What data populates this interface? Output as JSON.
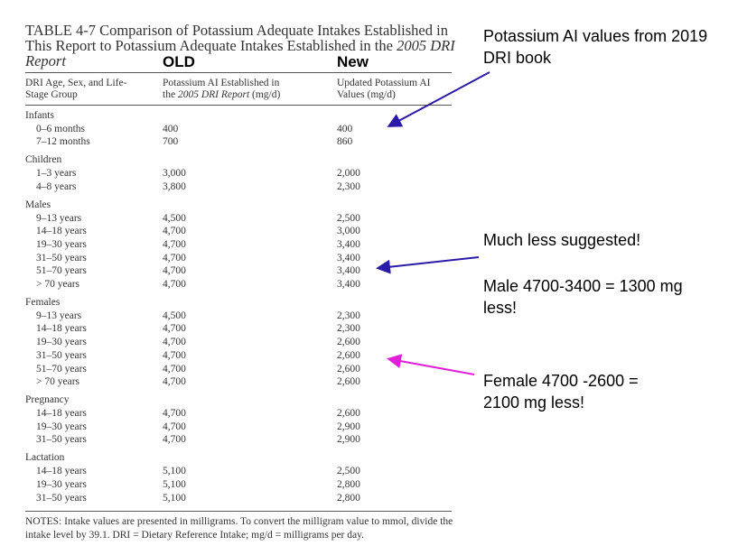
{
  "title": {
    "prefix": "TABLE 4-7 Comparison of Potassium Adequate Intakes Established in This Report to Potassium Adequate Intakes Established in the ",
    "italic": "2005 DRI Report"
  },
  "labels": {
    "old": "OLD",
    "new": "New"
  },
  "headers": {
    "col1": "DRI Age, Sex, and Life-Stage Group",
    "col2_a": "Potassium AI Established in",
    "col2_b": "the ",
    "col2_italic": "2005 DRI Report",
    "col2_c": " (mg/d)",
    "col3": "Updated Potassium AI Values (mg/d)"
  },
  "groups": [
    {
      "name": "Infants",
      "rows": [
        [
          "0–6 months",
          "400",
          "400"
        ],
        [
          "7–12 months",
          "700",
          "860"
        ]
      ]
    },
    {
      "name": "Children",
      "rows": [
        [
          "1–3 years",
          "3,000",
          "2,000"
        ],
        [
          "4–8 years",
          "3,800",
          "2,300"
        ]
      ]
    },
    {
      "name": "Males",
      "rows": [
        [
          "9–13 years",
          "4,500",
          "2,500"
        ],
        [
          "14–18 years",
          "4,700",
          "3,000"
        ],
        [
          "19–30 years",
          "4,700",
          "3,400"
        ],
        [
          "31–50 years",
          "4,700",
          "3,400"
        ],
        [
          "51–70 years",
          "4,700",
          "3,400"
        ],
        [
          "> 70 years",
          "4,700",
          "3,400"
        ]
      ]
    },
    {
      "name": "Females",
      "rows": [
        [
          "9–13 years",
          "4,500",
          "2,300"
        ],
        [
          "14–18 years",
          "4,700",
          "2,300"
        ],
        [
          "19–30 years",
          "4,700",
          "2,600"
        ],
        [
          "31–50 years",
          "4,700",
          "2,600"
        ],
        [
          "51–70 years",
          "4,700",
          "2,600"
        ],
        [
          "> 70 years",
          "4,700",
          "2,600"
        ]
      ]
    },
    {
      "name": "Pregnancy",
      "rows": [
        [
          "14–18 years",
          "4,700",
          "2,600"
        ],
        [
          "19–30 years",
          "4,700",
          "2,900"
        ],
        [
          "31–50 years",
          "4,700",
          "2,900"
        ]
      ]
    },
    {
      "name": "Lactation",
      "rows": [
        [
          "14–18 years",
          "5,100",
          "2,500"
        ],
        [
          "19–30 years",
          "5,100",
          "2,800"
        ],
        [
          "31–50 years",
          "5,100",
          "2,800"
        ]
      ]
    }
  ],
  "notes": "NOTES: Intake values are presented in milligrams. To convert the milligram value to mmol, divide the intake level by 39.1. DRI = Dietary Reference Intake; mg/d = milligrams per day.",
  "annotations": {
    "a1": "Potassium AI values from 2019 DRI book",
    "a2": "Much less suggested!",
    "a3": "Male 4700-3400 = 1300 mg less!",
    "a4": "Female 4700 -2600 = 2100 mg less!"
  },
  "colors": {
    "blue_arrow": "#2a1aa8",
    "magenta_arrow": "#e020d8"
  }
}
